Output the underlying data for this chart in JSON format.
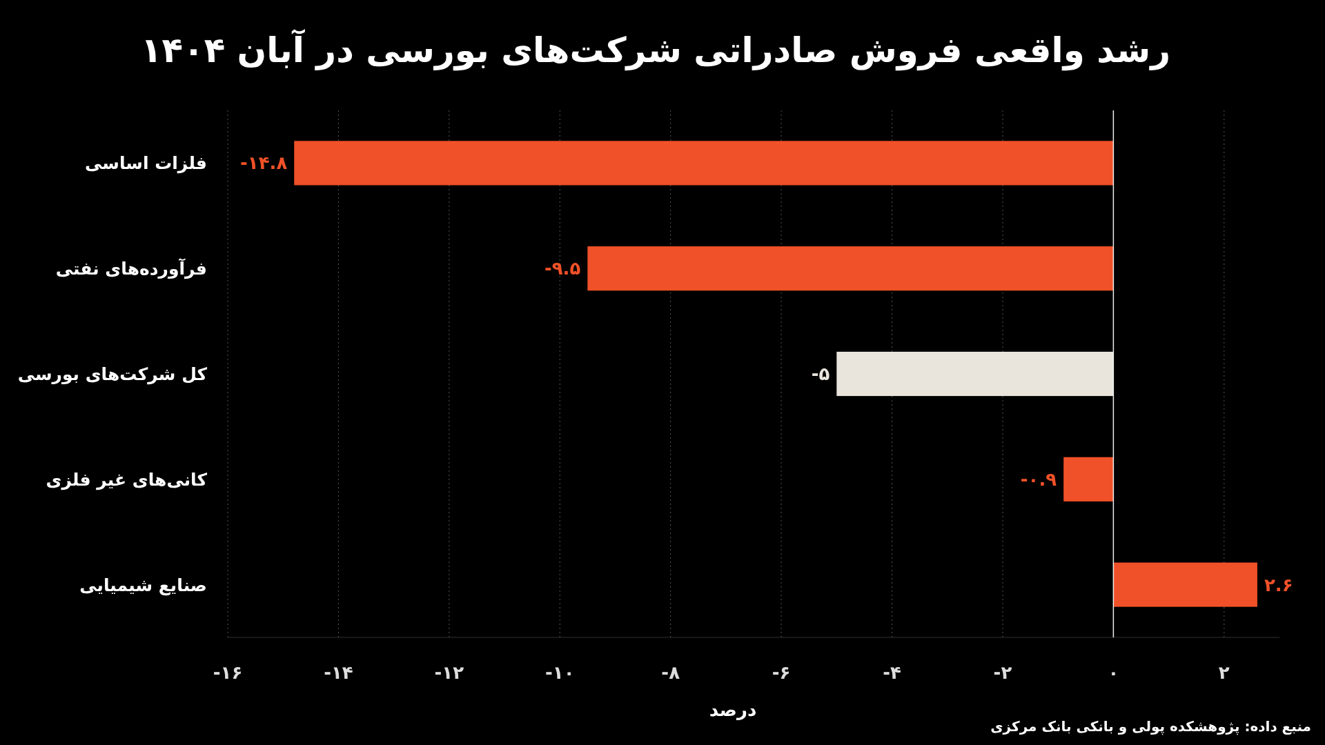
{
  "chart_data": {
    "type": "bar",
    "orientation": "horizontal",
    "title": "رشد واقعی فروش صادراتی شرکت‌های بورسی در آبان ۱۴۰۴",
    "xlabel": "درصد",
    "categories": [
      "فلزات اساسی",
      "فرآورده‌های نفتی",
      "کل شرکت‌های بورسی",
      "کانی‌های غیر فلزی",
      "صنایع شیمیایی"
    ],
    "values": [
      -14.8,
      -9.5,
      -5,
      -0.9,
      2.6
    ],
    "colors": [
      "#f15128",
      "#f15128",
      "#e9e5dd",
      "#f15128",
      "#f15128"
    ],
    "value_labels": [
      "-۱۴.۸",
      "-۹.۵",
      "-۵",
      "-۰.۹",
      "۲.۶"
    ],
    "xlim": [
      -16,
      3
    ],
    "xticks": [
      {
        "value": -16,
        "label": "-۱۶"
      },
      {
        "value": -14,
        "label": "-۱۴"
      },
      {
        "value": -12,
        "label": "-۱۲"
      },
      {
        "value": -10,
        "label": "-۱۰"
      },
      {
        "value": -8,
        "label": "-۸"
      },
      {
        "value": -6,
        "label": "-۶"
      },
      {
        "value": -4,
        "label": "-۴"
      },
      {
        "value": -2,
        "label": "-۲"
      },
      {
        "value": 0,
        "label": "۰"
      },
      {
        "value": 2,
        "label": "۲"
      }
    ],
    "grid": "x",
    "annotations": [
      "منبع داده: پژوهشکده پولی و بانکی بانک مرکزی"
    ]
  }
}
